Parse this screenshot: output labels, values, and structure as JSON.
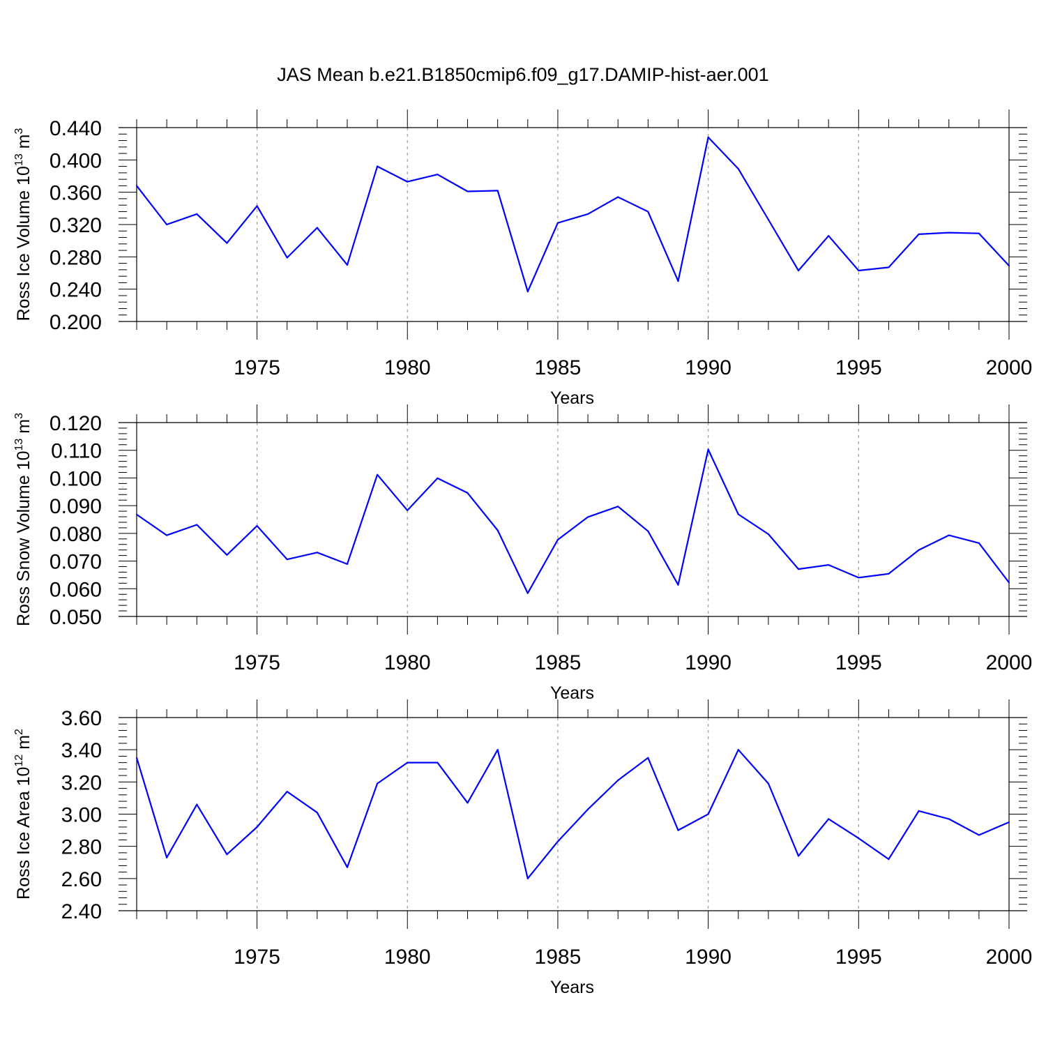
{
  "title": "JAS Mean b.e21.B1850cmip6.f09_g17.DAMIP-hist-aer.001",
  "colors": {
    "line": "#0000ff",
    "axis": "#000000",
    "grid": "#9a9a9a"
  },
  "chart_data": [
    {
      "type": "line",
      "xlabel": "Years",
      "ylabel_main": "Ross Ice Volume 10",
      "ylabel_exp": "13",
      "ylabel_unit": " m",
      "ylabel_unit_exp": "3",
      "xlim": [
        1971,
        2000
      ],
      "ylim": [
        0.2,
        0.44
      ],
      "yticks": [
        0.2,
        0.24,
        0.28,
        0.32,
        0.36,
        0.4,
        0.44
      ],
      "ytick_labels": [
        "0.200",
        "0.240",
        "0.280",
        "0.320",
        "0.360",
        "0.400",
        "0.440"
      ],
      "xticks": [
        1975,
        1980,
        1985,
        1990,
        1995,
        2000
      ],
      "xtick_labels": [
        "1975",
        "1980",
        "1985",
        "1990",
        "1995",
        "2000"
      ],
      "grid": "vertical dashed at major x ticks",
      "x": [
        1971,
        1972,
        1973,
        1974,
        1975,
        1976,
        1977,
        1978,
        1979,
        1980,
        1981,
        1982,
        1983,
        1984,
        1985,
        1986,
        1987,
        1988,
        1989,
        1990,
        1991,
        1992,
        1993,
        1994,
        1995,
        1996,
        1997,
        1998,
        1999,
        2000
      ],
      "values": [
        0.368,
        0.32,
        0.333,
        0.297,
        0.343,
        0.279,
        0.316,
        0.27,
        0.392,
        0.373,
        0.382,
        0.361,
        0.362,
        0.237,
        0.322,
        0.333,
        0.354,
        0.336,
        0.25,
        0.428,
        0.389,
        0.326,
        0.263,
        0.306,
        0.263,
        0.267,
        0.308,
        0.31,
        0.309,
        0.269
      ]
    },
    {
      "type": "line",
      "xlabel": "Years",
      "ylabel_main": "Ross Snow Volume 10",
      "ylabel_exp": "13",
      "ylabel_unit": " m",
      "ylabel_unit_exp": "3",
      "xlim": [
        1971,
        2000
      ],
      "ylim": [
        0.05,
        0.12
      ],
      "yticks": [
        0.05,
        0.06,
        0.07,
        0.08,
        0.09,
        0.1,
        0.11,
        0.12
      ],
      "ytick_labels": [
        "0.050",
        "0.060",
        "0.070",
        "0.080",
        "0.090",
        "0.100",
        "0.110",
        "0.120"
      ],
      "xticks": [
        1975,
        1980,
        1985,
        1990,
        1995,
        2000
      ],
      "xtick_labels": [
        "1975",
        "1980",
        "1985",
        "1990",
        "1995",
        "2000"
      ],
      "grid": "vertical dashed at major x ticks",
      "x": [
        1971,
        1972,
        1973,
        1974,
        1975,
        1976,
        1977,
        1978,
        1979,
        1980,
        1981,
        1982,
        1983,
        1984,
        1985,
        1986,
        1987,
        1988,
        1989,
        1990,
        1991,
        1992,
        1993,
        1994,
        1995,
        1996,
        1997,
        1998,
        1999,
        2000
      ],
      "values": [
        0.0868,
        0.0793,
        0.0831,
        0.0722,
        0.0827,
        0.0706,
        0.0731,
        0.0689,
        0.1012,
        0.0883,
        0.0999,
        0.0946,
        0.0811,
        0.0584,
        0.0777,
        0.0859,
        0.0897,
        0.0808,
        0.0614,
        0.1103,
        0.0869,
        0.0797,
        0.0671,
        0.0686,
        0.064,
        0.0654,
        0.074,
        0.0793,
        0.0765,
        0.0622
      ]
    },
    {
      "type": "line",
      "xlabel": "Years",
      "ylabel_main": "Ross Ice Area 10",
      "ylabel_exp": "12",
      "ylabel_unit": " m",
      "ylabel_unit_exp": "2",
      "xlim": [
        1971,
        2000
      ],
      "ylim": [
        2.4,
        3.6
      ],
      "yticks": [
        2.4,
        2.6,
        2.8,
        3.0,
        3.2,
        3.4,
        3.6
      ],
      "ytick_labels": [
        "2.40",
        "2.60",
        "2.80",
        "3.00",
        "3.20",
        "3.40",
        "3.60"
      ],
      "xticks": [
        1975,
        1980,
        1985,
        1990,
        1995,
        2000
      ],
      "xtick_labels": [
        "1975",
        "1980",
        "1985",
        "1990",
        "1995",
        "2000"
      ],
      "grid": "vertical dashed at major x ticks",
      "x": [
        1971,
        1972,
        1973,
        1974,
        1975,
        1976,
        1977,
        1978,
        1979,
        1980,
        1981,
        1982,
        1983,
        1984,
        1985,
        1986,
        1987,
        1988,
        1989,
        1990,
        1991,
        1992,
        1993,
        1994,
        1995,
        1996,
        1997,
        1998,
        1999,
        2000
      ],
      "values": [
        3.35,
        2.73,
        3.06,
        2.75,
        2.92,
        3.14,
        3.01,
        2.67,
        3.19,
        3.32,
        3.32,
        3.07,
        3.4,
        2.6,
        2.83,
        3.03,
        3.21,
        3.35,
        2.9,
        3.0,
        3.4,
        3.19,
        2.74,
        2.97,
        2.85,
        2.72,
        3.02,
        2.97,
        2.87,
        2.95
      ]
    }
  ]
}
